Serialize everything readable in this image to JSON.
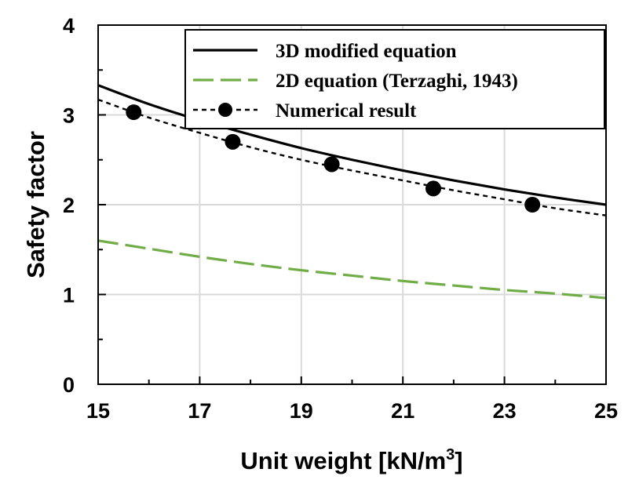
{
  "chart_data": {
    "type": "line",
    "title": "",
    "xlabel": "Unit weight [kN/m",
    "xlabel_sup": "3",
    "xlabel_end": "]",
    "ylabel": "Safety factor",
    "xlim": [
      15,
      25
    ],
    "ylim": [
      0,
      4
    ],
    "x_ticks": [
      "15",
      "17",
      "19",
      "21",
      "23",
      "25"
    ],
    "y_ticks": [
      "0",
      "1",
      "2",
      "3",
      "4"
    ],
    "grid": true,
    "legend_position": "top-right",
    "series": [
      {
        "name": "3D modified equation",
        "style": "solid",
        "color": "#000000",
        "x": [
          15,
          16,
          17,
          18,
          19,
          20,
          21,
          22,
          23,
          24,
          25
        ],
        "y": [
          3.33,
          3.12,
          2.94,
          2.78,
          2.63,
          2.5,
          2.38,
          2.27,
          2.17,
          2.08,
          2.0
        ]
      },
      {
        "name": "2D equation (Terzaghi, 1943)",
        "style": "long-dash",
        "color": "#70ad47",
        "x": [
          15,
          16,
          17,
          18,
          19,
          20,
          21,
          22,
          23,
          24,
          25
        ],
        "y": [
          1.6,
          1.51,
          1.42,
          1.34,
          1.27,
          1.21,
          1.15,
          1.1,
          1.05,
          1.01,
          0.96
        ]
      },
      {
        "name": "Numerical result",
        "style": "short-dash-markers",
        "color": "#000000",
        "marker_x": [
          15.7,
          17.65,
          19.6,
          21.6,
          23.55
        ],
        "marker_y": [
          3.03,
          2.7,
          2.45,
          2.18,
          2.0
        ],
        "x": [
          15,
          16,
          17,
          18,
          19,
          20,
          21,
          22,
          23,
          24,
          25
        ],
        "y": [
          3.17,
          2.97,
          2.8,
          2.64,
          2.5,
          2.38,
          2.27,
          2.16,
          2.06,
          1.96,
          1.88
        ]
      }
    ]
  }
}
